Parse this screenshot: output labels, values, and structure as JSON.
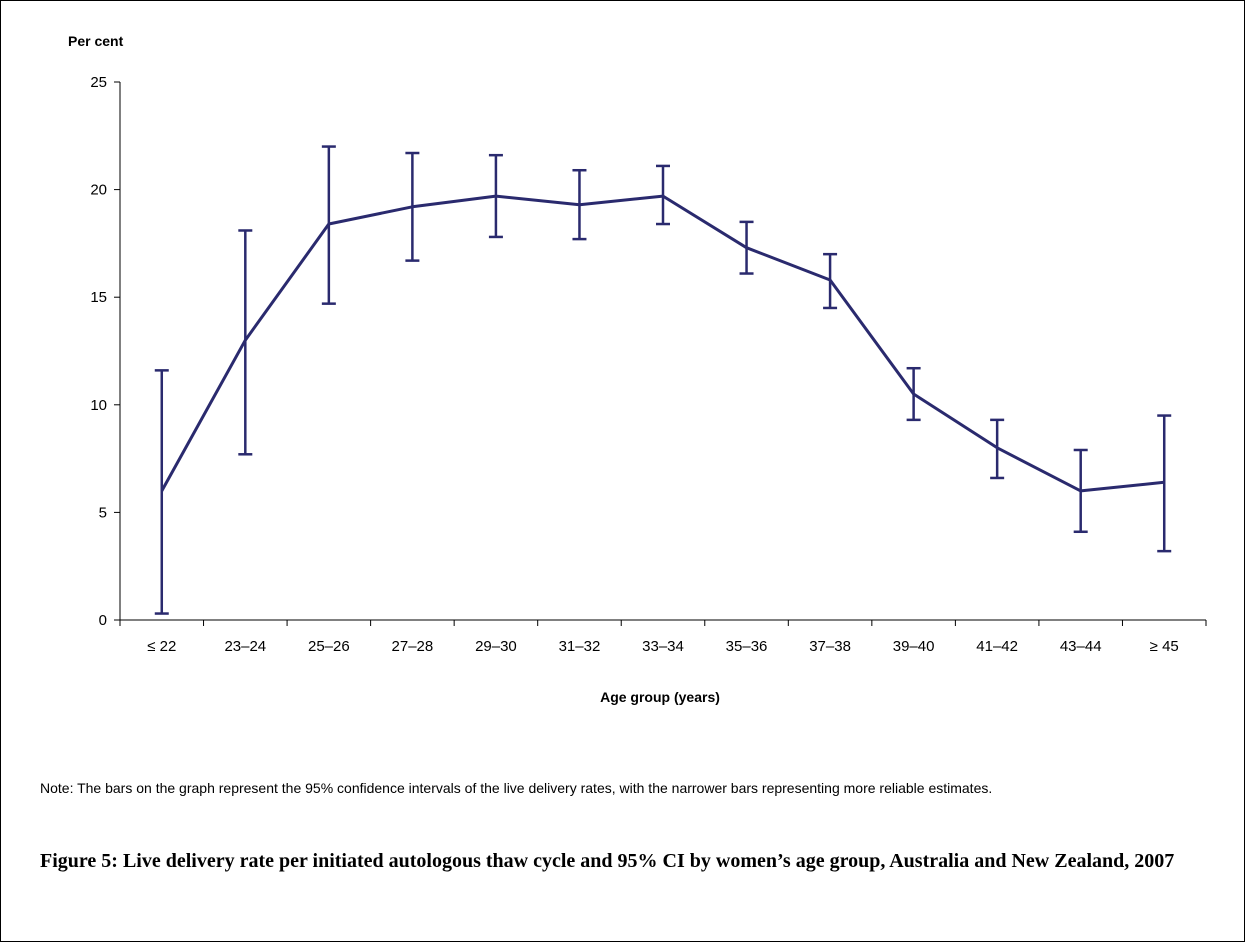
{
  "chart_data": {
    "type": "line",
    "ylabel": "Per cent",
    "xlabel": "Age group (years)",
    "categories": [
      "≤ 22",
      "23–24",
      "25–26",
      "27–28",
      "29–30",
      "31–32",
      "33–34",
      "35–36",
      "37–38",
      "39–40",
      "41–42",
      "43–44",
      "≥ 45"
    ],
    "series": [
      {
        "values": [
          6.0,
          13.0,
          18.4,
          19.2,
          19.7,
          19.3,
          19.7,
          17.3,
          15.8,
          10.5,
          8.0,
          6.0,
          6.4
        ],
        "ci_lower": [
          0.3,
          7.7,
          14.7,
          16.7,
          17.8,
          17.7,
          18.4,
          16.1,
          14.5,
          9.3,
          6.6,
          4.1,
          3.2
        ],
        "ci_upper": [
          11.6,
          18.1,
          22.0,
          21.7,
          21.6,
          20.9,
          21.1,
          18.5,
          17.0,
          11.7,
          9.3,
          7.9,
          9.5
        ],
        "color": "#2a2a6e"
      }
    ],
    "ylim": [
      0,
      25
    ],
    "yticks": [
      0,
      5,
      10,
      15,
      20,
      25
    ],
    "grid": false,
    "legend": "none"
  },
  "note": "Note: The bars on the graph represent the 95% confidence intervals of the live delivery rates, with the narrower bars representing more reliable estimates.",
  "caption": "Figure 5: Live delivery rate per initiated autologous thaw cycle and 95% CI by women’s age group, Australia and New Zealand, 2007"
}
